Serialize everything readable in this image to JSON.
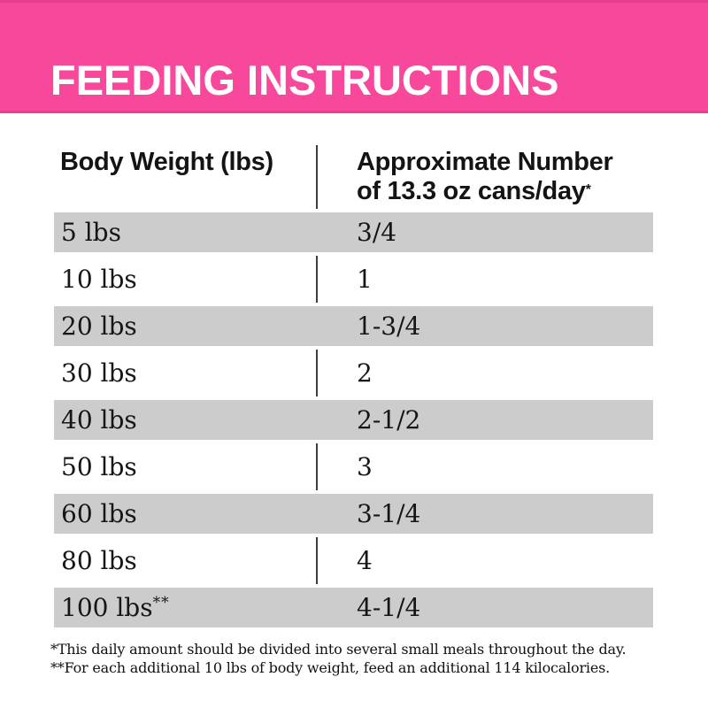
{
  "banner": {
    "title": "FEEDING INSTRUCTIONS"
  },
  "table": {
    "col1_header": "Body Weight (lbs)",
    "col2_header_line1": "Approximate Number",
    "col2_header_line2": "of 13.3 oz cans/day",
    "col2_header_sup": "*",
    "rows": [
      {
        "weight": "5 lbs",
        "sup": "",
        "cans": "3/4",
        "shaded": true
      },
      {
        "weight": "10 lbs",
        "sup": "",
        "cans": "1",
        "shaded": false
      },
      {
        "weight": "20 lbs",
        "sup": "",
        "cans": "1-3/4",
        "shaded": true
      },
      {
        "weight": "30 lbs",
        "sup": "",
        "cans": "2",
        "shaded": false
      },
      {
        "weight": "40 lbs",
        "sup": "",
        "cans": "2-1/2",
        "shaded": true
      },
      {
        "weight": "50 lbs",
        "sup": "",
        "cans": "3",
        "shaded": false
      },
      {
        "weight": "60 lbs",
        "sup": "",
        "cans": "3-1/4",
        "shaded": true
      },
      {
        "weight": "80 lbs",
        "sup": "",
        "cans": "4",
        "shaded": false
      },
      {
        "weight": "100 lbs",
        "sup": "**",
        "cans": "4-1/4",
        "shaded": true
      }
    ]
  },
  "footnotes": [
    "*This daily amount should be divided into several small meals throughout the day.",
    "**For each additional 10 lbs of body weight, feed an additional 114 kilocalories."
  ],
  "colors": {
    "banner_pink": "#f8489b",
    "row_gray": "#cccccc",
    "text_black": "#141414",
    "divider": "#3f3f3f",
    "title_white": "#ffffff"
  }
}
